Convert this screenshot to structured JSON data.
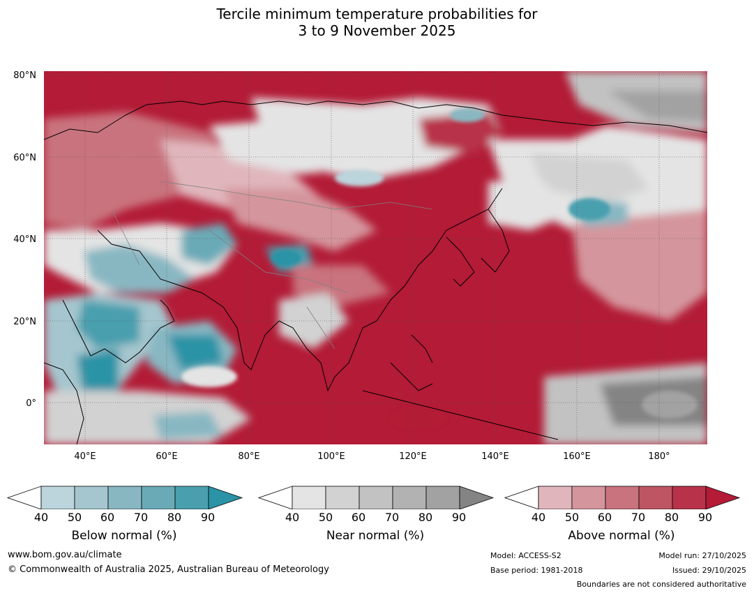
{
  "title": {
    "line1": "Tercile minimum temperature probabilities for",
    "line2": "3 to 9 November 2025"
  },
  "map": {
    "lat_ticks": [
      "80°N",
      "60°N",
      "40°N",
      "20°N",
      "0°"
    ],
    "lon_ticks": [
      "40°E",
      "60°E",
      "80°E",
      "100°E",
      "120°E",
      "140°E",
      "160°E",
      "180°"
    ],
    "extent": {
      "lon_min": 30,
      "lon_max": 192,
      "lat_min": -10,
      "lat_max": 81
    }
  },
  "colorbars": [
    {
      "label": "Below normal (%)",
      "ticks": [
        "40",
        "50",
        "60",
        "70",
        "80",
        "90"
      ],
      "colors": [
        "#ffffff",
        "#bcd4dc",
        "#a5c6ce",
        "#88b7c2",
        "#6aaab7",
        "#4a9fae",
        "#2b93a6"
      ]
    },
    {
      "label": "Near normal (%)",
      "ticks": [
        "40",
        "50",
        "60",
        "70",
        "80",
        "90"
      ],
      "colors": [
        "#ffffff",
        "#e4e4e4",
        "#d2d2d2",
        "#c2c2c2",
        "#b2b2b2",
        "#a2a2a2",
        "#848484"
      ]
    },
    {
      "label": "Above normal (%)",
      "ticks": [
        "40",
        "50",
        "60",
        "70",
        "80",
        "90"
      ],
      "colors": [
        "#ffffff",
        "#e0b6bc",
        "#d4959c",
        "#c9737e",
        "#bd5562",
        "#b8334a",
        "#b31b36"
      ]
    }
  ],
  "footer": {
    "website": "www.bom.gov.au/climate",
    "copyright": "© Commonwealth of Australia 2025, Australian Bureau of Meteorology",
    "model": "Model: ACCESS-S2",
    "base_period": "Base period: 1981-2018",
    "model_run": "Model run: 27/10/2025",
    "issued": "Issued: 29/10/2025",
    "disclaimer": "Boundaries are not considered authoritative"
  }
}
